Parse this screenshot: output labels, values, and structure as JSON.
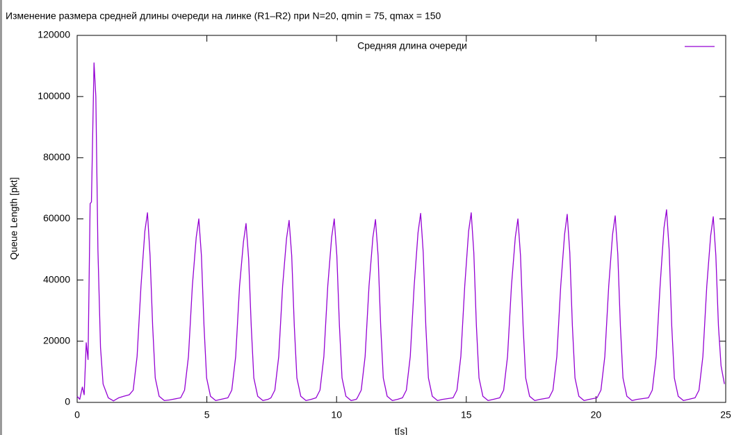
{
  "chart_data": {
    "type": "line",
    "title": "Изменение размера средней длины очереди на линке (R1–R2) при N=20, qmin = 75, qmax = 150",
    "x_label": "t[s]",
    "y_label": "Queue Length [pkt]",
    "xlim": [
      0,
      25
    ],
    "xticks": [
      0,
      5,
      10,
      15,
      20,
      25
    ],
    "ylim": [
      0,
      120000
    ],
    "yticks": [
      0,
      20000,
      40000,
      60000,
      80000,
      100000,
      120000
    ],
    "legend": "top right",
    "x": [
      0,
      0.1,
      0.2,
      0.27,
      0.35,
      0.42,
      0.5,
      0.55,
      0.65,
      0.72,
      0.8,
      0.9,
      1.0,
      1.2,
      1.4,
      1.6,
      1.8,
      2.01,
      2.16,
      2.31,
      2.46,
      2.61,
      2.71,
      2.81,
      2.91,
      3.01,
      3.16,
      3.36,
      3.56,
      3.99,
      4.14,
      4.29,
      4.44,
      4.59,
      4.69,
      4.79,
      4.89,
      4.99,
      5.14,
      5.34,
      5.54,
      5.81,
      5.96,
      6.11,
      6.26,
      6.41,
      6.51,
      6.61,
      6.71,
      6.81,
      6.96,
      7.16,
      7.36,
      7.47,
      7.62,
      7.77,
      7.92,
      8.07,
      8.17,
      8.27,
      8.37,
      8.47,
      8.62,
      8.82,
      9.02,
      9.21,
      9.36,
      9.51,
      9.66,
      9.81,
      9.91,
      10.01,
      10.11,
      10.21,
      10.36,
      10.56,
      10.76,
      10.8,
      10.95,
      11.1,
      11.25,
      11.4,
      11.5,
      11.6,
      11.7,
      11.8,
      11.95,
      12.15,
      12.35,
      12.54,
      12.69,
      12.84,
      12.99,
      13.14,
      13.24,
      13.34,
      13.44,
      13.54,
      13.69,
      13.89,
      14.09,
      14.49,
      14.64,
      14.79,
      14.94,
      15.09,
      15.19,
      15.29,
      15.39,
      15.49,
      15.64,
      15.84,
      16.04,
      16.29,
      16.44,
      16.59,
      16.74,
      16.89,
      16.99,
      17.09,
      17.19,
      17.29,
      17.44,
      17.64,
      17.84,
      18.19,
      18.34,
      18.49,
      18.64,
      18.79,
      18.89,
      18.99,
      19.09,
      19.19,
      19.34,
      19.54,
      19.74,
      20.04,
      20.19,
      20.34,
      20.49,
      20.64,
      20.74,
      20.84,
      20.94,
      21.04,
      21.19,
      21.39,
      21.59,
      22.02,
      22.17,
      22.32,
      22.47,
      22.62,
      22.72,
      22.82,
      22.92,
      23.02,
      23.17,
      23.37,
      23.57,
      23.82,
      23.97,
      24.12,
      24.27,
      24.42,
      24.52,
      24.62,
      24.72,
      24.82,
      24.95
    ],
    "series": [
      {
        "name": "Средняя длина очереди",
        "color": "#9400d3",
        "values": [
          2000,
          1000,
          5000,
          2500,
          19500,
          14000,
          65000,
          65500,
          111000,
          100000,
          50000,
          18000,
          6000,
          1500,
          500,
          1500,
          2000,
          2500,
          4000,
          15000,
          38000,
          56000,
          62000,
          48000,
          25000,
          8000,
          2000,
          600,
          800,
          1500,
          4000,
          15000,
          38000,
          54000,
          60000,
          48000,
          25000,
          8000,
          2000,
          600,
          1000,
          1500,
          4000,
          15000,
          38000,
          52500,
          58500,
          47000,
          25000,
          8000,
          2000,
          600,
          1000,
          1500,
          4000,
          15000,
          38000,
          53500,
          59500,
          48000,
          25000,
          8000,
          2000,
          600,
          1000,
          1500,
          4000,
          15000,
          38000,
          54000,
          60000,
          48000,
          25000,
          8000,
          2000,
          600,
          1000,
          1500,
          4000,
          15000,
          38000,
          54000,
          59800,
          48000,
          25000,
          8000,
          2000,
          600,
          1000,
          1500,
          4000,
          15000,
          38000,
          55500,
          61800,
          49000,
          25000,
          8000,
          2000,
          600,
          1000,
          1500,
          4000,
          15000,
          38000,
          56000,
          62000,
          49000,
          25000,
          8000,
          2000,
          600,
          1000,
          1500,
          4000,
          15000,
          38000,
          54000,
          60000,
          48000,
          25000,
          8000,
          2000,
          600,
          1000,
          1500,
          4000,
          15000,
          38000,
          55000,
          61500,
          49000,
          25000,
          8000,
          2000,
          600,
          1000,
          1500,
          4000,
          15000,
          38000,
          55000,
          61000,
          48500,
          25000,
          8000,
          2000,
          600,
          1000,
          1500,
          4000,
          15000,
          38000,
          57000,
          63000,
          50000,
          25000,
          8000,
          2000,
          600,
          1000,
          1500,
          4000,
          15000,
          38000,
          54500,
          60700,
          48000,
          25000,
          12000,
          6000
        ]
      }
    ]
  }
}
